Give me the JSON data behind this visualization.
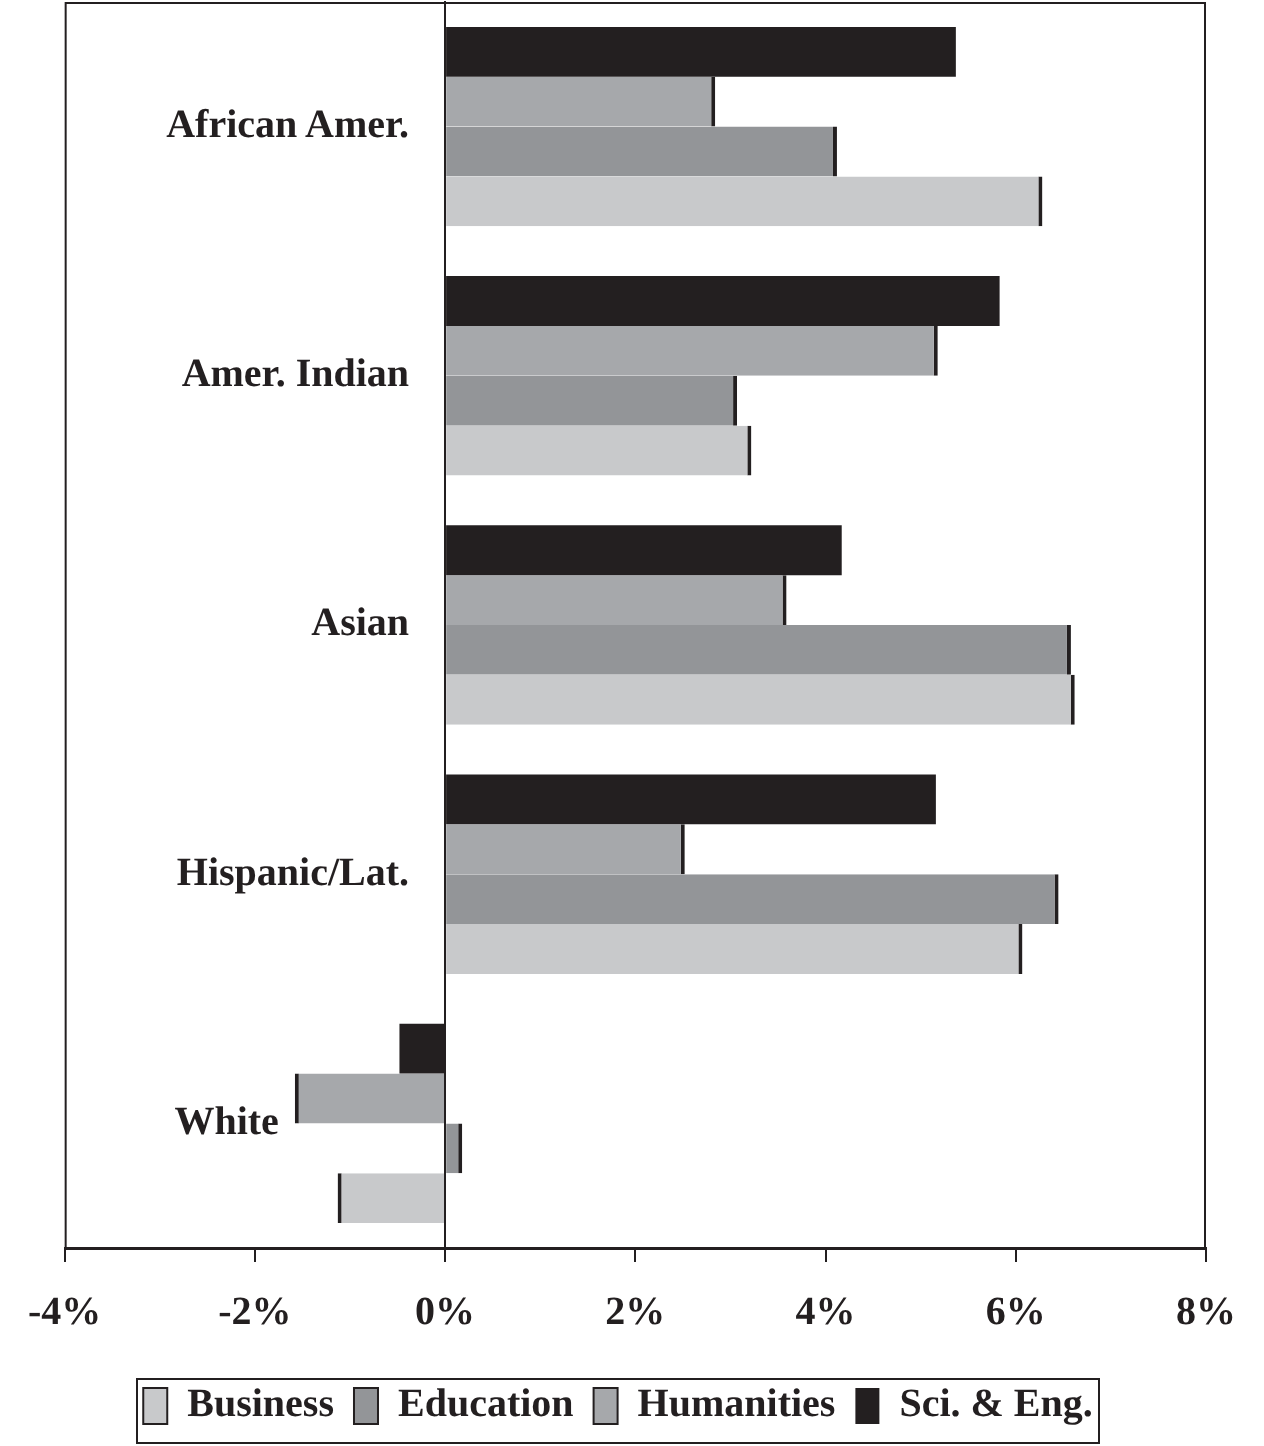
{
  "chart_data": {
    "type": "bar",
    "orientation": "horizontal",
    "categories": [
      "African Amer.",
      "Amer. Indian",
      "Asian",
      "Hispanic/Lat.",
      "White"
    ],
    "series": [
      {
        "name": "Business",
        "color": "#c8c9cb",
        "values": [
          6.28,
          3.22,
          6.62,
          6.07,
          -1.13
        ]
      },
      {
        "name": "Education",
        "color": "#939598",
        "values": [
          4.12,
          3.07,
          6.58,
          6.45,
          0.18
        ]
      },
      {
        "name": "Humanities",
        "color": "#a6a8ab",
        "values": [
          2.84,
          5.18,
          3.59,
          2.52,
          -1.58
        ]
      },
      {
        "name": "Sci. & Eng.",
        "color": "#231f20",
        "values": [
          5.37,
          5.83,
          4.17,
          5.16,
          -0.48
        ]
      }
    ],
    "xlim": [
      -4,
      8
    ],
    "xticks": [
      {
        "value": -4,
        "label": "-4%"
      },
      {
        "value": -2,
        "label": "-2%"
      },
      {
        "value": 0,
        "label": "0%"
      },
      {
        "value": 2,
        "label": "2%"
      },
      {
        "value": 4,
        "label": "4%"
      },
      {
        "value": 6,
        "label": "6%"
      },
      {
        "value": 8,
        "label": "8%"
      }
    ],
    "grid": false,
    "legend": "bottom"
  }
}
